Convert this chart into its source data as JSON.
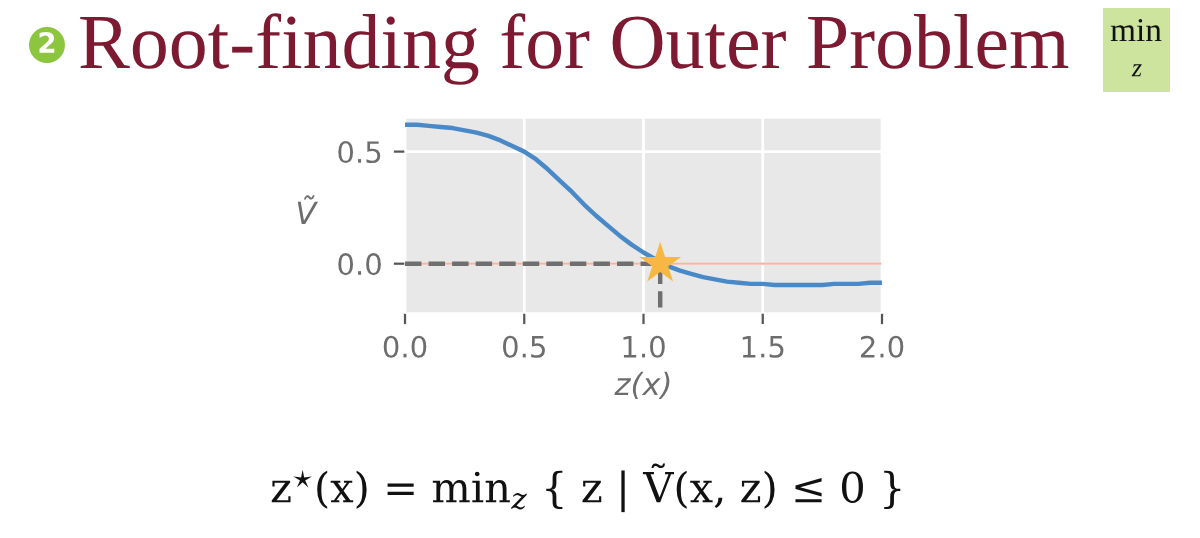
{
  "chart_data": {
    "type": "line",
    "title": "Root-finding for Outer Problem",
    "xlabel": "z(x)",
    "ylabel": "Ṽ",
    "annotations": [
      "2",
      "min",
      "z",
      "z$^{⋆}$(x) = min$_{z}$ { z | Ṽ(x, z) ≤ 0 }"
    ],
    "xlim": [
      0,
      2
    ],
    "ylim": [
      -0.22,
      0.65
    ],
    "xticks": [
      {
        "value": 0,
        "label": "0.0"
      },
      0.5,
      {
        "value": 1,
        "label": "1.0"
      },
      1.5,
      {
        "value": 2,
        "label": "2.0"
      }
    ],
    "yticks": [
      {
        "value": 0,
        "label": "0.0"
      },
      0.5
    ],
    "grid": true,
    "ref_lines": [
      {
        "axis": "y",
        "value": 0,
        "color": "#f4b6a4"
      }
    ],
    "series": [
      {
        "color": "#4a89c8",
        "x": [
          0,
          0.05,
          0.1,
          0.15,
          0.2,
          0.25,
          0.3,
          0.35,
          0.4,
          0.45,
          0.5,
          0.55,
          0.6,
          0.65,
          0.7,
          0.75,
          0.8,
          0.85,
          0.9,
          0.95,
          1.0,
          1.05,
          1.1,
          1.15,
          1.2,
          1.25,
          1.3,
          1.35,
          1.4,
          1.45,
          1.5,
          1.55,
          1.6,
          1.65,
          1.7,
          1.75,
          1.8,
          1.85,
          1.9,
          1.95,
          2.0
        ],
        "values": [
          0.62,
          0.62,
          0.615,
          0.61,
          0.605,
          0.595,
          0.585,
          0.57,
          0.55,
          0.525,
          0.5,
          0.465,
          0.42,
          0.37,
          0.32,
          0.265,
          0.215,
          0.17,
          0.125,
          0.085,
          0.05,
          0.02,
          -0.01,
          -0.03,
          -0.045,
          -0.06,
          -0.07,
          -0.08,
          -0.085,
          -0.09,
          -0.09,
          -0.095,
          -0.095,
          -0.095,
          -0.095,
          -0.095,
          -0.09,
          -0.09,
          -0.09,
          -0.085,
          -0.085
        ]
      },
      {
        "type": "line",
        "color": "#6f6f6f",
        "line_style": "dashed",
        "x": [
          0,
          1.07,
          1.07
        ],
        "values": [
          0,
          0,
          -0.22
        ]
      },
      {
        "type": "scatter",
        "color": "#f6b843",
        "marker": "star",
        "x": [
          1.07
        ],
        "values": [
          0
        ]
      }
    ]
  }
}
